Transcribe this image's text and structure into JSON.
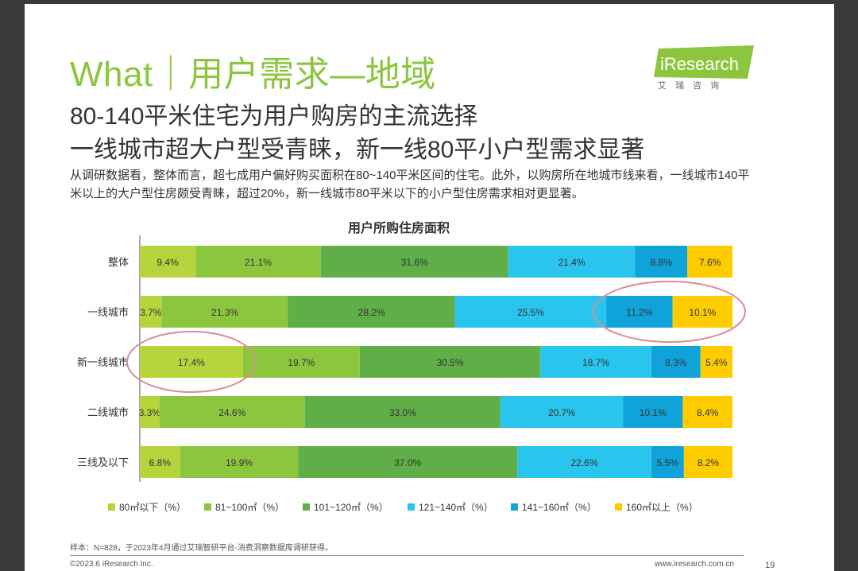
{
  "header": {
    "title": "What｜用户需求—地域",
    "subtitle_line1": "80-140平米住宅为用户购房的主流选择",
    "subtitle_line2": "一线城市超大户型受青睐，新一线80平小户型需求显著",
    "description": "从调研数据看，整体而言，超七成用户偏好购买面积在80~140平米区间的住宅。此外，以购房所在地城市线来看，一线城市140平米以上的大户型住房颇受青睐，超过20%，新一线城市80平米以下的小户型住房需求相对更显著。"
  },
  "logo": {
    "brand": "iResearch",
    "sub": "艾瑞咨询",
    "color": "#8cc63f"
  },
  "footer": {
    "source": "样本：N=828，于2023年4月通过艾瑞智研平台-消费洞察数据库调研获得。",
    "copyright": "©2023.6 iResearch Inc.",
    "site": "www.iresearch.com.cn",
    "page": "19"
  },
  "chart_data": {
    "type": "bar",
    "orientation": "horizontal-stacked-100",
    "title": "用户所购住房面积",
    "categories": [
      "整体",
      "一线城市",
      "新一线城市",
      "二线城市",
      "三线及以下"
    ],
    "series": [
      {
        "name": "80㎡以下（%）",
        "color": "#b6d43c",
        "values": [
          9.4,
          3.7,
          17.4,
          3.3,
          6.8
        ]
      },
      {
        "name": "81~100㎡（%）",
        "color": "#8cc63f",
        "values": [
          21.1,
          21.3,
          19.7,
          24.6,
          19.9
        ]
      },
      {
        "name": "101~120㎡（%）",
        "color": "#5fae47",
        "values": [
          31.6,
          28.2,
          30.5,
          33.0,
          37.0
        ]
      },
      {
        "name": "121~140㎡（%）",
        "color": "#29c5ee",
        "values": [
          21.4,
          25.5,
          18.7,
          20.7,
          22.6
        ]
      },
      {
        "name": "141~160㎡（%）",
        "color": "#0fa3d9",
        "values": [
          8.8,
          11.2,
          8.3,
          10.1,
          5.5
        ]
      },
      {
        "name": "160㎡以上（%）",
        "color": "#ffcc00",
        "values": [
          7.6,
          10.1,
          5.4,
          8.4,
          8.2
        ]
      }
    ],
    "legend_position": "bottom",
    "highlights": [
      {
        "category": "一线城市",
        "series": [
          "141~160㎡（%）",
          "160㎡以上（%）"
        ],
        "color": "#d98c97"
      },
      {
        "category": "新一线城市",
        "series": [
          "80㎡以下（%）"
        ],
        "color": "#d98c97"
      }
    ]
  }
}
